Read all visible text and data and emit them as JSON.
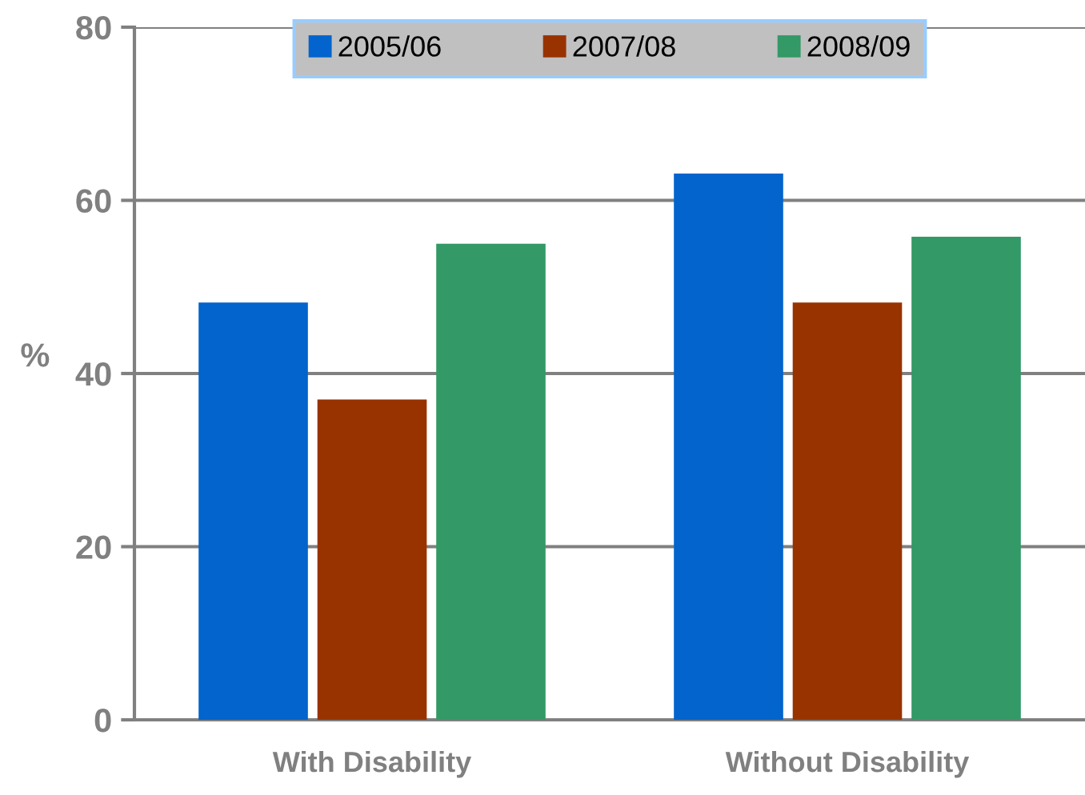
{
  "chart_data": {
    "type": "bar",
    "ylabel": "%",
    "categories": [
      "With Disability",
      "Without Disability"
    ],
    "series": [
      {
        "name": "2005/06",
        "color": "#0264cc",
        "values": [
          48.2,
          63.1
        ]
      },
      {
        "name": "2007/08",
        "color": "#983300",
        "values": [
          37.0,
          48.2
        ]
      },
      {
        "name": "2008/09",
        "color": "#339966",
        "values": [
          55.0,
          55.8
        ]
      }
    ],
    "ylim": [
      0,
      80
    ],
    "yticks": [
      0,
      20,
      40,
      60,
      80
    ],
    "grid": "y",
    "legend": "top"
  }
}
